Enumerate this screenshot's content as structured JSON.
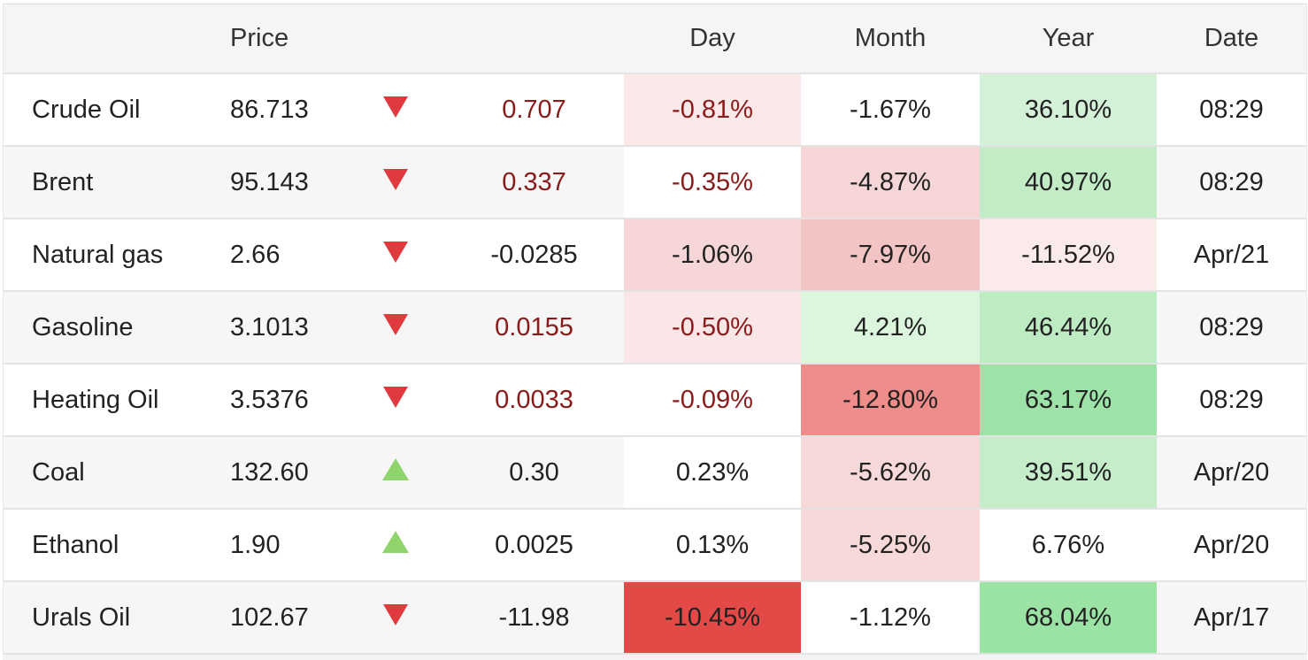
{
  "table": {
    "headers": {
      "name": "",
      "price": "Price",
      "direction": "",
      "change": "",
      "day": "Day",
      "month": "Month",
      "year": "Year",
      "date": "Date"
    },
    "rows": [
      {
        "name": "Crude Oil",
        "price": "86.713",
        "direction": "down",
        "direction_icon": "triangle-down-icon",
        "change": "0.707",
        "day": "-0.81%",
        "month": "-1.67%",
        "year": "36.10%",
        "date": "08:29"
      },
      {
        "name": "Brent",
        "price": "95.143",
        "direction": "down",
        "direction_icon": "triangle-down-icon",
        "change": "0.337",
        "day": "-0.35%",
        "month": "-4.87%",
        "year": "40.97%",
        "date": "08:29"
      },
      {
        "name": "Natural gas",
        "price": "2.66",
        "direction": "down",
        "direction_icon": "triangle-down-icon",
        "change": "-0.0285",
        "day": "-1.06%",
        "month": "-7.97%",
        "year": "-11.52%",
        "date": "Apr/21"
      },
      {
        "name": "Gasoline",
        "price": "3.1013",
        "direction": "down",
        "direction_icon": "triangle-down-icon",
        "change": "0.0155",
        "day": "-0.50%",
        "month": "4.21%",
        "year": "46.44%",
        "date": "08:29"
      },
      {
        "name": "Heating Oil",
        "price": "3.5376",
        "direction": "down",
        "direction_icon": "triangle-down-icon",
        "change": "0.0033",
        "day": "-0.09%",
        "month": "-12.80%",
        "year": "63.17%",
        "date": "08:29"
      },
      {
        "name": "Coal",
        "price": "132.60",
        "direction": "up",
        "direction_icon": "triangle-up-icon",
        "change": "0.30",
        "day": "0.23%",
        "month": "-5.62%",
        "year": "39.51%",
        "date": "Apr/20"
      },
      {
        "name": "Ethanol",
        "price": "1.90",
        "direction": "up",
        "direction_icon": "triangle-up-icon",
        "change": "0.0025",
        "day": "0.13%",
        "month": "-5.25%",
        "year": "6.76%",
        "date": "Apr/20"
      },
      {
        "name": "Urals Oil",
        "price": "102.67",
        "direction": "down",
        "direction_icon": "triangle-down-icon",
        "change": "-11.98",
        "day": "-10.45%",
        "month": "-1.12%",
        "year": "68.04%",
        "date": "Apr/17"
      }
    ]
  },
  "colors": {
    "down_arrow": "#e0393e",
    "up_arrow": "#8fd46c",
    "negative_text": "#8b1a1a",
    "heat_neg_light": "#fbe8e8",
    "heat_neg_mid": "#f6d3d3",
    "heat_neg_strong": "#ef8c88",
    "heat_neg_max": "#e34a47",
    "heat_pos_light": "#dcf4dc",
    "heat_pos_mid": "#c2ecc4",
    "heat_pos_strong": "#9be3a5"
  }
}
